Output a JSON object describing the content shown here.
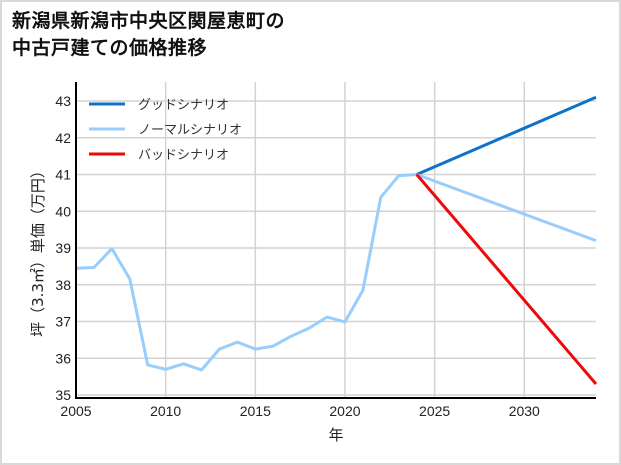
{
  "title_line1": "新潟県新潟市中央区関屋恵町の",
  "title_line2": "中古戸建ての価格推移",
  "colors": {
    "good": "#0e72c8",
    "normal": "#99cdfb",
    "bad": "#ee0a0a",
    "grid": "#d3d3d3",
    "axis": "#000000"
  },
  "chart_data": {
    "type": "line",
    "title": "新潟県新潟市中央区関屋恵町の中古戸建ての価格推移",
    "xlabel": "年",
    "ylabel": "坪（3.3㎡）単価（万円）",
    "xlim": [
      2005,
      2034
    ],
    "ylim": [
      35,
      43.2
    ],
    "xticks": [
      2005,
      2010,
      2015,
      2020,
      2025,
      2030
    ],
    "yticks": [
      35,
      36,
      37,
      38,
      39,
      40,
      41,
      42,
      43
    ],
    "grid": true,
    "legend_position": "upper left",
    "legend": [
      "グッドシナリオ",
      "ノーマルシナリオ",
      "バッドシナリオ"
    ],
    "series": [
      {
        "name": "ノーマルシナリオ (実績)",
        "color": "#99cdfb",
        "x": [
          2005,
          2006,
          2007,
          2008,
          2009,
          2010,
          2011,
          2012,
          2013,
          2014,
          2015,
          2016,
          2017,
          2018,
          2019,
          2020,
          2021,
          2022,
          2023,
          2024
        ],
        "values": [
          38.45,
          38.47,
          38.98,
          38.16,
          35.82,
          35.7,
          35.85,
          35.68,
          36.25,
          36.44,
          36.25,
          36.33,
          36.6,
          36.82,
          37.12,
          36.99,
          37.85,
          40.38,
          40.97,
          41.0
        ]
      },
      {
        "name": "グッドシナリオ",
        "color": "#0e72c8",
        "x": [
          2024,
          2034
        ],
        "values": [
          41.0,
          43.1
        ]
      },
      {
        "name": "ノーマルシナリオ",
        "color": "#99cdfb",
        "x": [
          2024,
          2034
        ],
        "values": [
          41.0,
          39.2
        ]
      },
      {
        "name": "バッドシナリオ",
        "color": "#ee0a0a",
        "x": [
          2024,
          2034
        ],
        "values": [
          41.0,
          35.3
        ]
      }
    ]
  }
}
